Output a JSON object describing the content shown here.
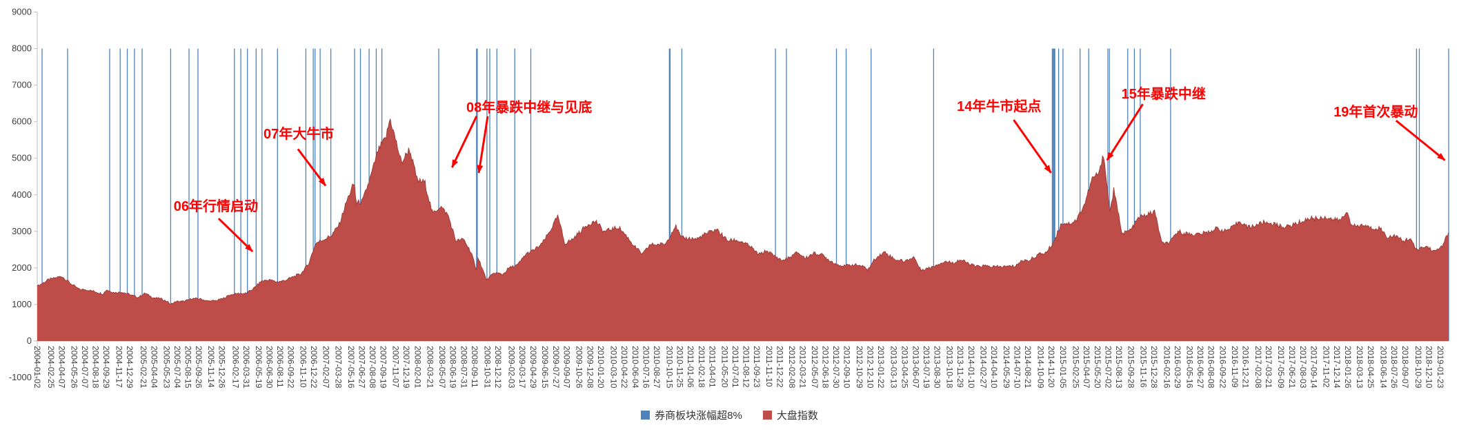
{
  "chart_data": {
    "type": "area",
    "title": "",
    "xlabel": "",
    "ylabel": "",
    "xlim": [
      "2004-01-02",
      "2019-02-25"
    ],
    "ylim": [
      -1000,
      9000
    ],
    "grid": false,
    "legend_position": "bottom",
    "y_ticks": [
      9000,
      8000,
      7000,
      6000,
      5000,
      4000,
      3000,
      2000,
      1000,
      0,
      -1000
    ],
    "x_ticks": [
      "2004-01-02",
      "2004-02-25",
      "2004-04-07",
      "2004-05-26",
      "2004-07-07",
      "2004-08-18",
      "2004-09-29",
      "2004-11-17",
      "2004-12-29",
      "2005-02-21",
      "2005-04-04",
      "2005-05-23",
      "2005-07-04",
      "2005-08-15",
      "2005-09-26",
      "2005-11-14",
      "2005-12-26",
      "2006-02-17",
      "2006-03-31",
      "2006-05-19",
      "2006-06-30",
      "2006-08-11",
      "2006-09-22",
      "2006-11-10",
      "2006-12-22",
      "2007-02-07",
      "2007-03-28",
      "2007-05-16",
      "2007-06-27",
      "2007-08-08",
      "2007-09-19",
      "2007-11-07",
      "2007-12-19",
      "2008-02-01",
      "2008-03-21",
      "2008-05-07",
      "2008-06-19",
      "2008-07-31",
      "2008-09-11",
      "2008-10-31",
      "2008-12-12",
      "2009-02-03",
      "2009-03-17",
      "2009-04-29",
      "2009-06-15",
      "2009-07-27",
      "2009-09-07",
      "2009-10-26",
      "2009-12-08",
      "2010-01-20",
      "2010-03-10",
      "2010-04-22",
      "2010-06-04",
      "2010-07-16",
      "2010-08-27",
      "2010-10-15",
      "2010-11-25",
      "2011-01-06",
      "2011-02-18",
      "2011-04-01",
      "2011-05-20",
      "2011-07-01",
      "2011-08-12",
      "2011-09-23",
      "2011-11-10",
      "2011-12-22",
      "2012-02-08",
      "2012-03-21",
      "2012-05-07",
      "2012-06-18",
      "2012-07-30",
      "2012-09-10",
      "2012-10-29",
      "2012-12-10",
      "2013-01-22",
      "2013-03-13",
      "2013-04-25",
      "2013-06-07",
      "2013-07-19",
      "2013-08-30",
      "2013-10-18",
      "2013-11-29",
      "2014-01-10",
      "2014-02-27",
      "2014-04-10",
      "2014-05-29",
      "2014-07-10",
      "2014-08-21",
      "2014-10-09",
      "2014-11-20",
      "2015-01-05",
      "2015-02-25",
      "2015-04-07",
      "2015-05-20",
      "2015-07-02",
      "2015-08-13",
      "2015-09-28",
      "2015-11-16",
      "2015-12-28",
      "2016-02-16",
      "2016-03-29",
      "2016-05-16",
      "2016-06-27",
      "2016-08-08",
      "2016-09-22",
      "2016-11-09",
      "2016-12-21",
      "2017-02-08",
      "2017-03-21",
      "2017-05-09",
      "2017-06-21",
      "2017-08-03",
      "2017-09-14",
      "2017-11-02",
      "2017-12-14",
      "2018-01-26",
      "2018-03-13",
      "2018-04-25",
      "2018-06-14",
      "2018-07-26",
      "2018-09-07",
      "2018-10-29",
      "2018-12-10",
      "2019-01-23"
    ],
    "series": [
      {
        "name": "券商板块涨幅超8%",
        "type": "event-lines",
        "color": "#4F81BD",
        "value_top": 8000,
        "dates": [
          "2004-01-21",
          "2004-04-30",
          "2004-10-12",
          "2004-11-22",
          "2004-12-20",
          "2005-01-17",
          "2005-02-16",
          "2005-06-08",
          "2005-08-19",
          "2005-09-23",
          "2006-02-13",
          "2006-03-10",
          "2006-04-05",
          "2006-05-09",
          "2006-06-01",
          "2006-08-01",
          "2006-11-20",
          "2006-12-19",
          "2006-12-26",
          "2007-01-15",
          "2007-02-26",
          "2007-05-30",
          "2007-06-22",
          "2007-07-26",
          "2007-08-23",
          "2007-09-14",
          "2008-04-24",
          "2008-09-19",
          "2008-09-22",
          "2008-10-30",
          "2008-11-10",
          "2008-12-08",
          "2009-02-16",
          "2009-04-20",
          "2010-10-15",
          "2010-10-18",
          "2010-12-03",
          "2011-12-05",
          "2012-01-17",
          "2012-07-31",
          "2012-09-07",
          "2012-12-14",
          "2013-08-16",
          "2014-11-24",
          "2014-11-28",
          "2014-12-01",
          "2014-12-02",
          "2014-12-04",
          "2014-12-19",
          "2015-01-05",
          "2015-03-13",
          "2015-04-16",
          "2015-06-30",
          "2015-07-06",
          "2015-09-16",
          "2015-10-12",
          "2015-11-04",
          "2016-03-02",
          "2018-10-22",
          "2018-11-02",
          "2019-02-25"
        ]
      },
      {
        "name": "大盘指数",
        "type": "area",
        "color": "#BE4C48",
        "edge_color": "#9E3D39",
        "points": [
          [
            "2004-01-02",
            1497
          ],
          [
            "2004-02-15",
            1675
          ],
          [
            "2004-04-07",
            1770
          ],
          [
            "2004-05-15",
            1555
          ],
          [
            "2004-06-15",
            1410
          ],
          [
            "2004-07-15",
            1400
          ],
          [
            "2004-08-15",
            1350
          ],
          [
            "2004-09-15",
            1285
          ],
          [
            "2004-09-30",
            1400
          ],
          [
            "2004-10-31",
            1320
          ],
          [
            "2004-11-30",
            1340
          ],
          [
            "2004-12-31",
            1266
          ],
          [
            "2005-01-31",
            1191
          ],
          [
            "2005-02-28",
            1306
          ],
          [
            "2005-03-31",
            1181
          ],
          [
            "2005-04-30",
            1159
          ],
          [
            "2005-05-31",
            1060
          ],
          [
            "2005-06-06",
            998
          ],
          [
            "2005-06-30",
            1080
          ],
          [
            "2005-07-31",
            1083
          ],
          [
            "2005-08-31",
            1162
          ],
          [
            "2005-09-30",
            1155
          ],
          [
            "2005-10-31",
            1092
          ],
          [
            "2005-11-30",
            1099
          ],
          [
            "2005-12-31",
            1161
          ],
          [
            "2006-01-25",
            1258
          ],
          [
            "2006-02-28",
            1299
          ],
          [
            "2006-03-31",
            1298
          ],
          [
            "2006-04-30",
            1440
          ],
          [
            "2006-05-31",
            1641
          ],
          [
            "2006-06-30",
            1672
          ],
          [
            "2006-07-31",
            1612
          ],
          [
            "2006-08-31",
            1658
          ],
          [
            "2006-09-30",
            1752
          ],
          [
            "2006-10-31",
            1837
          ],
          [
            "2006-11-30",
            2099
          ],
          [
            "2006-12-29",
            2675
          ],
          [
            "2007-01-31",
            2786
          ],
          [
            "2007-02-28",
            2881
          ],
          [
            "2007-03-31",
            3183
          ],
          [
            "2007-04-30",
            3841
          ],
          [
            "2007-05-29",
            4335
          ],
          [
            "2007-06-05",
            3767
          ],
          [
            "2007-06-30",
            3820
          ],
          [
            "2007-07-31",
            4471
          ],
          [
            "2007-08-31",
            5218
          ],
          [
            "2007-09-30",
            5552
          ],
          [
            "2007-10-16",
            6092
          ],
          [
            "2007-11-30",
            4871
          ],
          [
            "2007-12-31",
            5261
          ],
          [
            "2008-01-31",
            4383
          ],
          [
            "2008-02-29",
            4348
          ],
          [
            "2008-03-31",
            3472
          ],
          [
            "2008-04-30",
            3693
          ],
          [
            "2008-05-31",
            3433
          ],
          [
            "2008-06-30",
            2736
          ],
          [
            "2008-07-31",
            2775
          ],
          [
            "2008-08-31",
            2397
          ],
          [
            "2008-09-18",
            1895
          ],
          [
            "2008-09-25",
            2297
          ],
          [
            "2008-10-28",
            1665
          ],
          [
            "2008-11-30",
            1871
          ],
          [
            "2008-12-31",
            1820
          ],
          [
            "2009-01-23",
            1990
          ],
          [
            "2009-02-28",
            2082
          ],
          [
            "2009-03-31",
            2373
          ],
          [
            "2009-04-30",
            2477
          ],
          [
            "2009-05-31",
            2632
          ],
          [
            "2009-06-30",
            2959
          ],
          [
            "2009-08-04",
            3412
          ],
          [
            "2009-08-31",
            2667
          ],
          [
            "2009-09-30",
            2779
          ],
          [
            "2009-10-31",
            2995
          ],
          [
            "2009-11-30",
            3195
          ],
          [
            "2009-12-31",
            3277
          ],
          [
            "2010-01-31",
            2989
          ],
          [
            "2010-02-28",
            3051
          ],
          [
            "2010-03-31",
            3109
          ],
          [
            "2010-04-30",
            2870
          ],
          [
            "2010-05-31",
            2592
          ],
          [
            "2010-07-02",
            2363
          ],
          [
            "2010-07-31",
            2637
          ],
          [
            "2010-08-31",
            2638
          ],
          [
            "2010-09-30",
            2655
          ],
          [
            "2010-11-08",
            3159
          ],
          [
            "2010-11-30",
            2820
          ],
          [
            "2010-12-31",
            2808
          ],
          [
            "2011-01-31",
            2790
          ],
          [
            "2011-02-28",
            2905
          ],
          [
            "2011-04-18",
            3057
          ],
          [
            "2011-05-31",
            2743
          ],
          [
            "2011-06-30",
            2762
          ],
          [
            "2011-07-31",
            2701
          ],
          [
            "2011-08-31",
            2567
          ],
          [
            "2011-09-30",
            2359
          ],
          [
            "2011-10-31",
            2468
          ],
          [
            "2011-11-30",
            2333
          ],
          [
            "2011-12-31",
            2199
          ],
          [
            "2012-01-31",
            2285
          ],
          [
            "2012-02-29",
            2428
          ],
          [
            "2012-03-31",
            2262
          ],
          [
            "2012-04-30",
            2396
          ],
          [
            "2012-05-31",
            2372
          ],
          [
            "2012-06-30",
            2225
          ],
          [
            "2012-07-31",
            2103
          ],
          [
            "2012-08-31",
            2047
          ],
          [
            "2012-09-30",
            2086
          ],
          [
            "2012-10-31",
            2068
          ],
          [
            "2012-12-03",
            1959
          ],
          [
            "2012-12-31",
            2269
          ],
          [
            "2013-02-06",
            2434
          ],
          [
            "2013-03-15",
            2236
          ],
          [
            "2013-04-26",
            2177
          ],
          [
            "2013-05-31",
            2300
          ],
          [
            "2013-06-25",
            1950
          ],
          [
            "2013-07-31",
            1993
          ],
          [
            "2013-08-31",
            2098
          ],
          [
            "2013-09-30",
            2175
          ],
          [
            "2013-10-31",
            2141
          ],
          [
            "2013-11-29",
            2220
          ],
          [
            "2013-12-31",
            2116
          ],
          [
            "2014-01-30",
            2033
          ],
          [
            "2014-02-28",
            2056
          ],
          [
            "2014-03-31",
            2033
          ],
          [
            "2014-04-30",
            2026
          ],
          [
            "2014-05-30",
            2039
          ],
          [
            "2014-06-30",
            2048
          ],
          [
            "2014-07-31",
            2201
          ],
          [
            "2014-08-29",
            2217
          ],
          [
            "2014-09-30",
            2364
          ],
          [
            "2014-10-31",
            2420
          ],
          [
            "2014-11-28",
            2683
          ],
          [
            "2014-12-31",
            3235
          ],
          [
            "2015-01-30",
            3210
          ],
          [
            "2015-02-27",
            3310
          ],
          [
            "2015-03-31",
            3748
          ],
          [
            "2015-04-30",
            4442
          ],
          [
            "2015-05-29",
            4612
          ],
          [
            "2015-06-12",
            5178
          ],
          [
            "2015-07-08",
            3507
          ],
          [
            "2015-07-23",
            4124
          ],
          [
            "2015-08-26",
            2927
          ],
          [
            "2015-09-30",
            3053
          ],
          [
            "2015-10-30",
            3383
          ],
          [
            "2015-11-30",
            3445
          ],
          [
            "2015-12-31",
            3539
          ],
          [
            "2016-01-28",
            2656
          ],
          [
            "2016-02-29",
            2688
          ],
          [
            "2016-03-31",
            3004
          ],
          [
            "2016-04-29",
            2938
          ],
          [
            "2016-05-31",
            2917
          ],
          [
            "2016-06-30",
            2930
          ],
          [
            "2016-07-29",
            2979
          ],
          [
            "2016-08-31",
            3085
          ],
          [
            "2016-09-30",
            3005
          ],
          [
            "2016-10-31",
            3100
          ],
          [
            "2016-11-29",
            3283
          ],
          [
            "2016-12-30",
            3104
          ],
          [
            "2017-01-26",
            3159
          ],
          [
            "2017-02-28",
            3242
          ],
          [
            "2017-03-31",
            3223
          ],
          [
            "2017-04-28",
            3155
          ],
          [
            "2017-05-31",
            3117
          ],
          [
            "2017-06-30",
            3192
          ],
          [
            "2017-07-31",
            3273
          ],
          [
            "2017-08-31",
            3361
          ],
          [
            "2017-09-29",
            3349
          ],
          [
            "2017-10-31",
            3393
          ],
          [
            "2017-11-30",
            3317
          ],
          [
            "2017-12-29",
            3307
          ],
          [
            "2018-01-26",
            3559
          ],
          [
            "2018-02-09",
            3130
          ],
          [
            "2018-03-30",
            3169
          ],
          [
            "2018-04-27",
            3082
          ],
          [
            "2018-05-31",
            3095
          ],
          [
            "2018-06-29",
            2847
          ],
          [
            "2018-07-31",
            2876
          ],
          [
            "2018-08-31",
            2725
          ],
          [
            "2018-09-28",
            2821
          ],
          [
            "2018-10-19",
            2486
          ],
          [
            "2018-11-30",
            2588
          ],
          [
            "2019-01-04",
            2440
          ],
          [
            "2019-02-01",
            2618
          ],
          [
            "2019-02-25",
            2961
          ]
        ]
      }
    ],
    "annotations": [
      {
        "text": "06年行情启动",
        "text_pos": [
          "2005-06-20",
          3900
        ],
        "arrows": [
          {
            "from": [
              "2005-12-13",
              3350
            ],
            "to": [
              "2006-04-25",
              2450
            ]
          }
        ]
      },
      {
        "text": "07年大牛市",
        "text_pos": [
          "2006-06-07",
          5880
        ],
        "arrows": [
          {
            "from": [
              "2006-10-20",
              5250
            ],
            "to": [
              "2007-02-05",
              4250
            ]
          }
        ]
      },
      {
        "text": "08年暴跌中继与见底",
        "text_pos": [
          "2008-08-10",
          6610
        ],
        "arrows": [
          {
            "from": [
              "2008-09-19",
              6150
            ],
            "to": [
              "2008-06-15",
              4750
            ]
          },
          {
            "from": [
              "2008-11-02",
              6150
            ],
            "to": [
              "2008-09-28",
              4600
            ]
          }
        ]
      },
      {
        "text": "14年牛市起点",
        "text_pos": [
          "2013-11-15",
          6630
        ],
        "arrows": [
          {
            "from": [
              "2014-06-26",
              6050
            ],
            "to": [
              "2014-11-19",
              4600
            ]
          }
        ]
      },
      {
        "text": "15年暴跌中继",
        "text_pos": [
          "2015-08-22",
          6970
        ],
        "arrows": [
          {
            "from": [
              "2015-11-14",
              6480
            ],
            "to": [
              "2015-06-27",
              4950
            ]
          }
        ]
      },
      {
        "text": "19年首次暴动",
        "text_pos": [
          "2017-12-01",
          6480
        ],
        "arrows": [
          {
            "from": [
              "2018-08-03",
              6030
            ],
            "to": [
              "2019-02-10",
              4950
            ]
          }
        ]
      }
    ]
  },
  "legend": {
    "items": [
      {
        "label": "券商板块涨幅超8%",
        "color": "#4F81BD"
      },
      {
        "label": "大盘指数",
        "color": "#BE4C48"
      }
    ]
  },
  "colors": {
    "background": "#FFFFFF",
    "axis": "#BFBFBF",
    "tick_text": "#404040",
    "annotation": "#FF0000",
    "event_line": "#4F81BD",
    "area_fill": "#BE4C48",
    "area_edge": "#9E3D39"
  }
}
